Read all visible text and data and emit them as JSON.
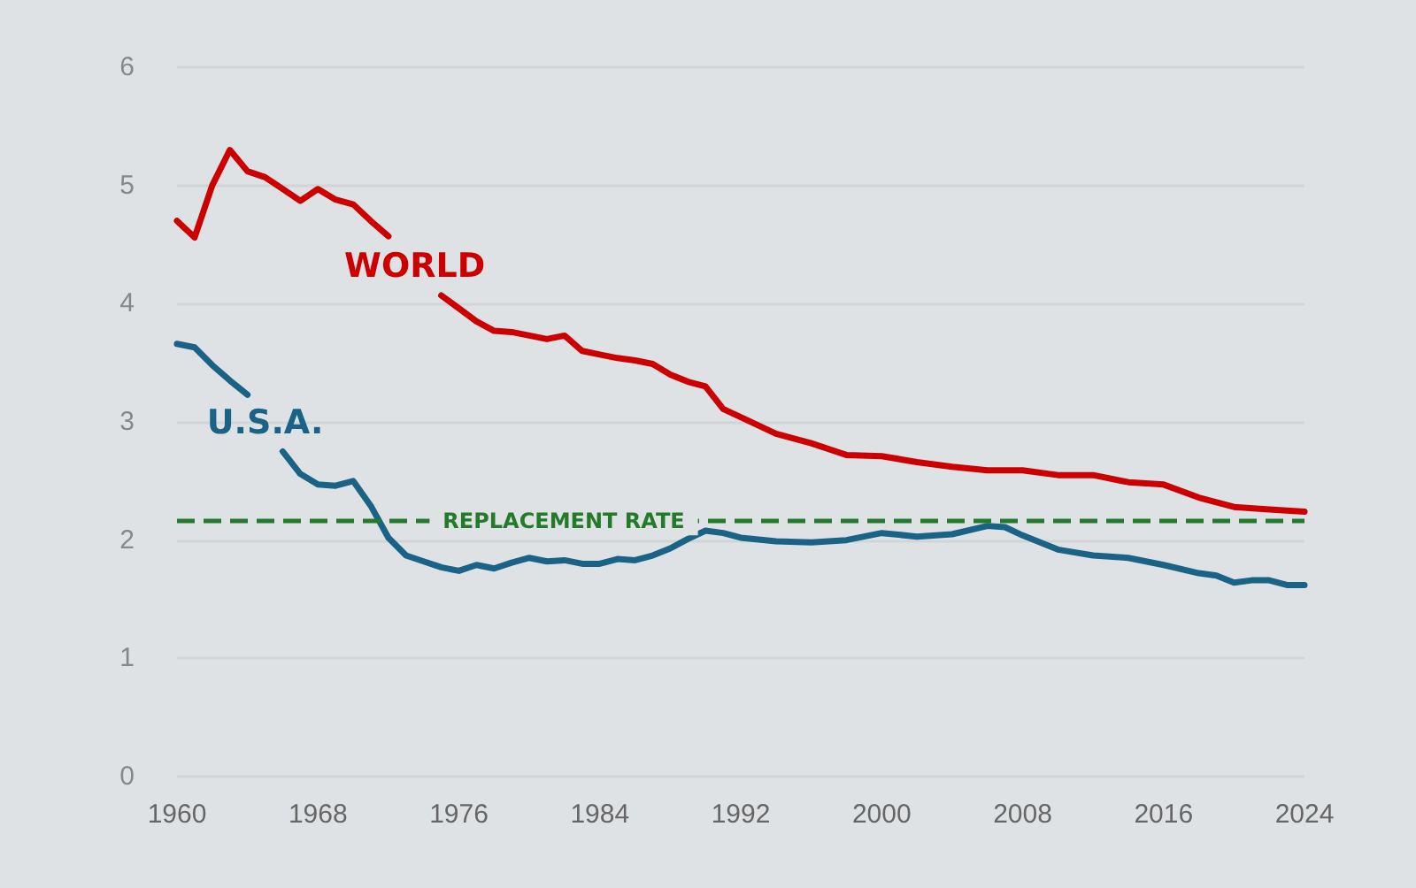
{
  "chart_data": {
    "type": "line",
    "xlim": [
      1960,
      2024
    ],
    "xticks": [
      1960,
      1968,
      1976,
      1984,
      1992,
      2000,
      2008,
      2016,
      2024
    ],
    "ylim": [
      0,
      6
    ],
    "yticks": [
      0,
      1,
      2,
      3,
      4,
      5,
      6
    ],
    "grid": "y",
    "legend": false,
    "marker": "none",
    "line_style": "solid",
    "series": [
      {
        "name": "WORLD",
        "color": "#cc0000",
        "x": [
          1960,
          1961,
          1962,
          1963,
          1964,
          1965,
          1966,
          1967,
          1968,
          1969,
          1970,
          1971,
          1972,
          1973,
          1974,
          1975,
          1976,
          1977,
          1978,
          1979,
          1980,
          1981,
          1982,
          1983,
          1984,
          1985,
          1986,
          1987,
          1988,
          1989,
          1990,
          1991,
          1992,
          1994,
          1996,
          1998,
          2000,
          2002,
          2004,
          2006,
          2008,
          2010,
          2012,
          2014,
          2016,
          2018,
          2020,
          2022,
          2024
        ],
        "values": [
          4.7,
          4.56,
          5.0,
          5.3,
          5.12,
          5.07,
          4.97,
          4.87,
          4.97,
          4.88,
          4.84,
          4.7,
          4.57,
          null,
          null,
          4.07,
          3.96,
          3.85,
          3.77,
          3.76,
          3.73,
          3.7,
          3.73,
          3.6,
          3.57,
          3.54,
          3.52,
          3.49,
          3.4,
          3.34,
          3.3,
          3.11,
          3.04,
          2.9,
          2.82,
          2.72,
          2.71,
          2.66,
          2.62,
          2.59,
          2.59,
          2.55,
          2.55,
          2.49,
          2.47,
          2.36,
          2.28,
          2.26,
          2.24
        ]
      },
      {
        "name": "U.S.A.",
        "color": "#1b6386",
        "x": [
          1960,
          1961,
          1962,
          1963,
          1964,
          1965,
          1966,
          1967,
          1968,
          1969,
          1970,
          1971,
          1972,
          1973,
          1974,
          1975,
          1976,
          1977,
          1978,
          1979,
          1980,
          1981,
          1982,
          1983,
          1984,
          1985,
          1986,
          1987,
          1988,
          1989,
          1990,
          1991,
          1992,
          1994,
          1996,
          1998,
          2000,
          2002,
          2004,
          2006,
          2007,
          2008,
          2010,
          2012,
          2014,
          2016,
          2018,
          2019,
          2020,
          2021,
          2022,
          2023,
          2024
        ],
        "values": [
          3.66,
          3.63,
          3.48,
          3.35,
          3.23,
          null,
          2.75,
          2.56,
          2.47,
          2.46,
          2.5,
          2.29,
          2.02,
          1.87,
          1.82,
          1.77,
          1.74,
          1.79,
          1.76,
          1.81,
          1.85,
          1.82,
          1.83,
          1.8,
          1.8,
          1.84,
          1.83,
          1.87,
          1.93,
          2.01,
          2.08,
          2.06,
          2.02,
          1.99,
          1.98,
          2.0,
          2.06,
          2.03,
          2.05,
          2.12,
          2.11,
          2.04,
          1.92,
          1.87,
          1.85,
          1.79,
          1.72,
          1.7,
          1.64,
          1.66,
          1.66,
          1.62,
          1.62
        ]
      }
    ],
    "ref_lines": [
      {
        "axis": "y",
        "value": 2.16,
        "label": "REPLACEMENT RATE",
        "color": "#237a2b",
        "line_style": "dashed"
      }
    ]
  }
}
